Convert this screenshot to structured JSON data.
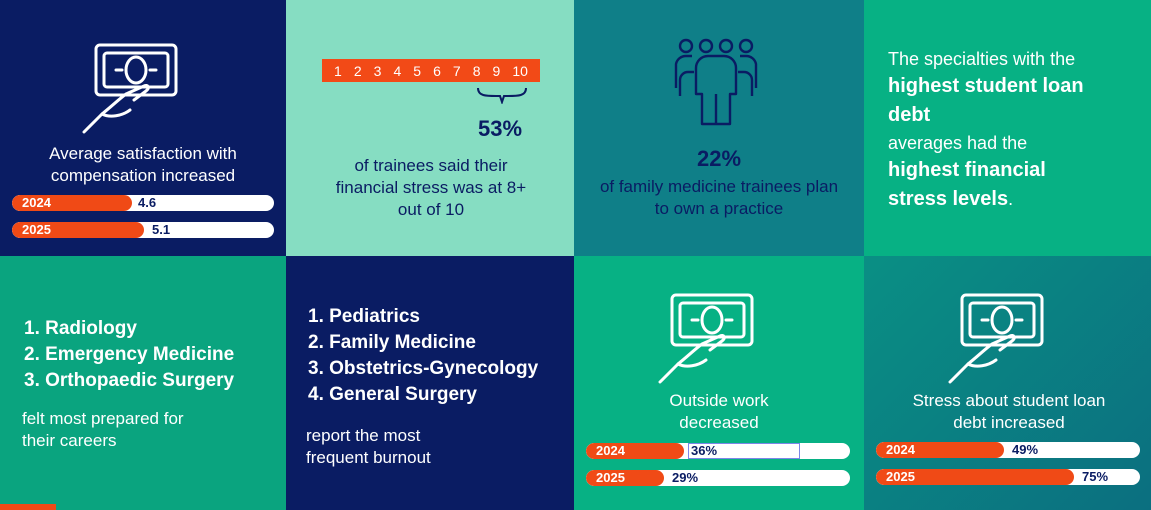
{
  "tile1": {
    "icon": "hand-money-icon",
    "caption": "Average satisfaction with compensation increased",
    "bars": [
      {
        "year": "2024",
        "value": "4.6",
        "fraction": 0.45
      },
      {
        "year": "2025",
        "value": "5.1",
        "fraction": 0.5
      }
    ]
  },
  "tile2": {
    "scale": [
      "1",
      "2",
      "3",
      "4",
      "5",
      "6",
      "7",
      "8",
      "9",
      "10"
    ],
    "percent": "53%",
    "caption": "of trainees said their financial stress was at 8+ out of 10"
  },
  "tile3": {
    "icon": "people-group-icon",
    "percent": "22%",
    "caption": "of family medicine trainees plan to own a practice"
  },
  "tile4": {
    "line1": "The specialties with the",
    "bold1": "highest student loan debt",
    "line2": "averages had the",
    "bold2": "highest financial stress levels",
    "period": "."
  },
  "tile5": {
    "items": [
      "1.  Radiology",
      "2.  Emergency Medicine",
      "3.  Orthopaedic Surgery"
    ],
    "caption": "felt most prepared for their careers"
  },
  "tile6": {
    "items": [
      "1.  Pediatrics",
      "2.  Family Medicine",
      "3.  Obstetrics-Gynecology",
      "4.  General Surgery"
    ],
    "caption": "report the most frequent burnout"
  },
  "tile7": {
    "icon": "hand-money-icon",
    "caption": "Outside work decreased",
    "bars": [
      {
        "year": "2024",
        "value": "36%",
        "fraction": 0.36
      },
      {
        "year": "2025",
        "value": "29%",
        "fraction": 0.29
      }
    ]
  },
  "tile8": {
    "icon": "hand-money-icon",
    "caption": "Stress about student loan debt increased",
    "bars": [
      {
        "year": "2024",
        "value": "49%",
        "fraction": 0.49
      },
      {
        "year": "2025",
        "value": "75%",
        "fraction": 0.75
      }
    ]
  },
  "colors": {
    "navy": "#0a1c63",
    "orange": "#f04a16",
    "mint": "#86ddc2",
    "teal": "#0f7f88",
    "green": "#0aa47f"
  }
}
